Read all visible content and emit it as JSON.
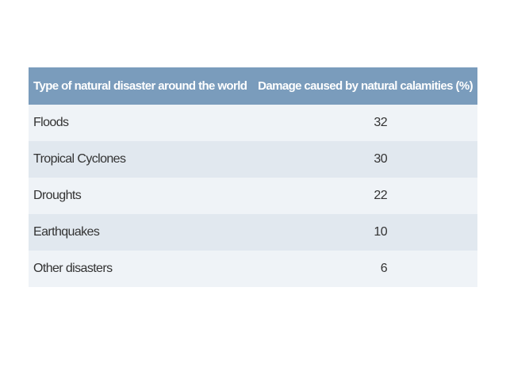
{
  "table": {
    "header": [
      "Type of natural disaster around the world",
      "Damage caused by natural calamities (%)"
    ],
    "rows": [
      [
        "Floods",
        32
      ],
      [
        "Tropical Cyclones",
        30
      ],
      [
        "Droughts",
        22
      ],
      [
        "Earthquakes",
        10
      ],
      [
        "Other disasters",
        6
      ]
    ]
  }
}
